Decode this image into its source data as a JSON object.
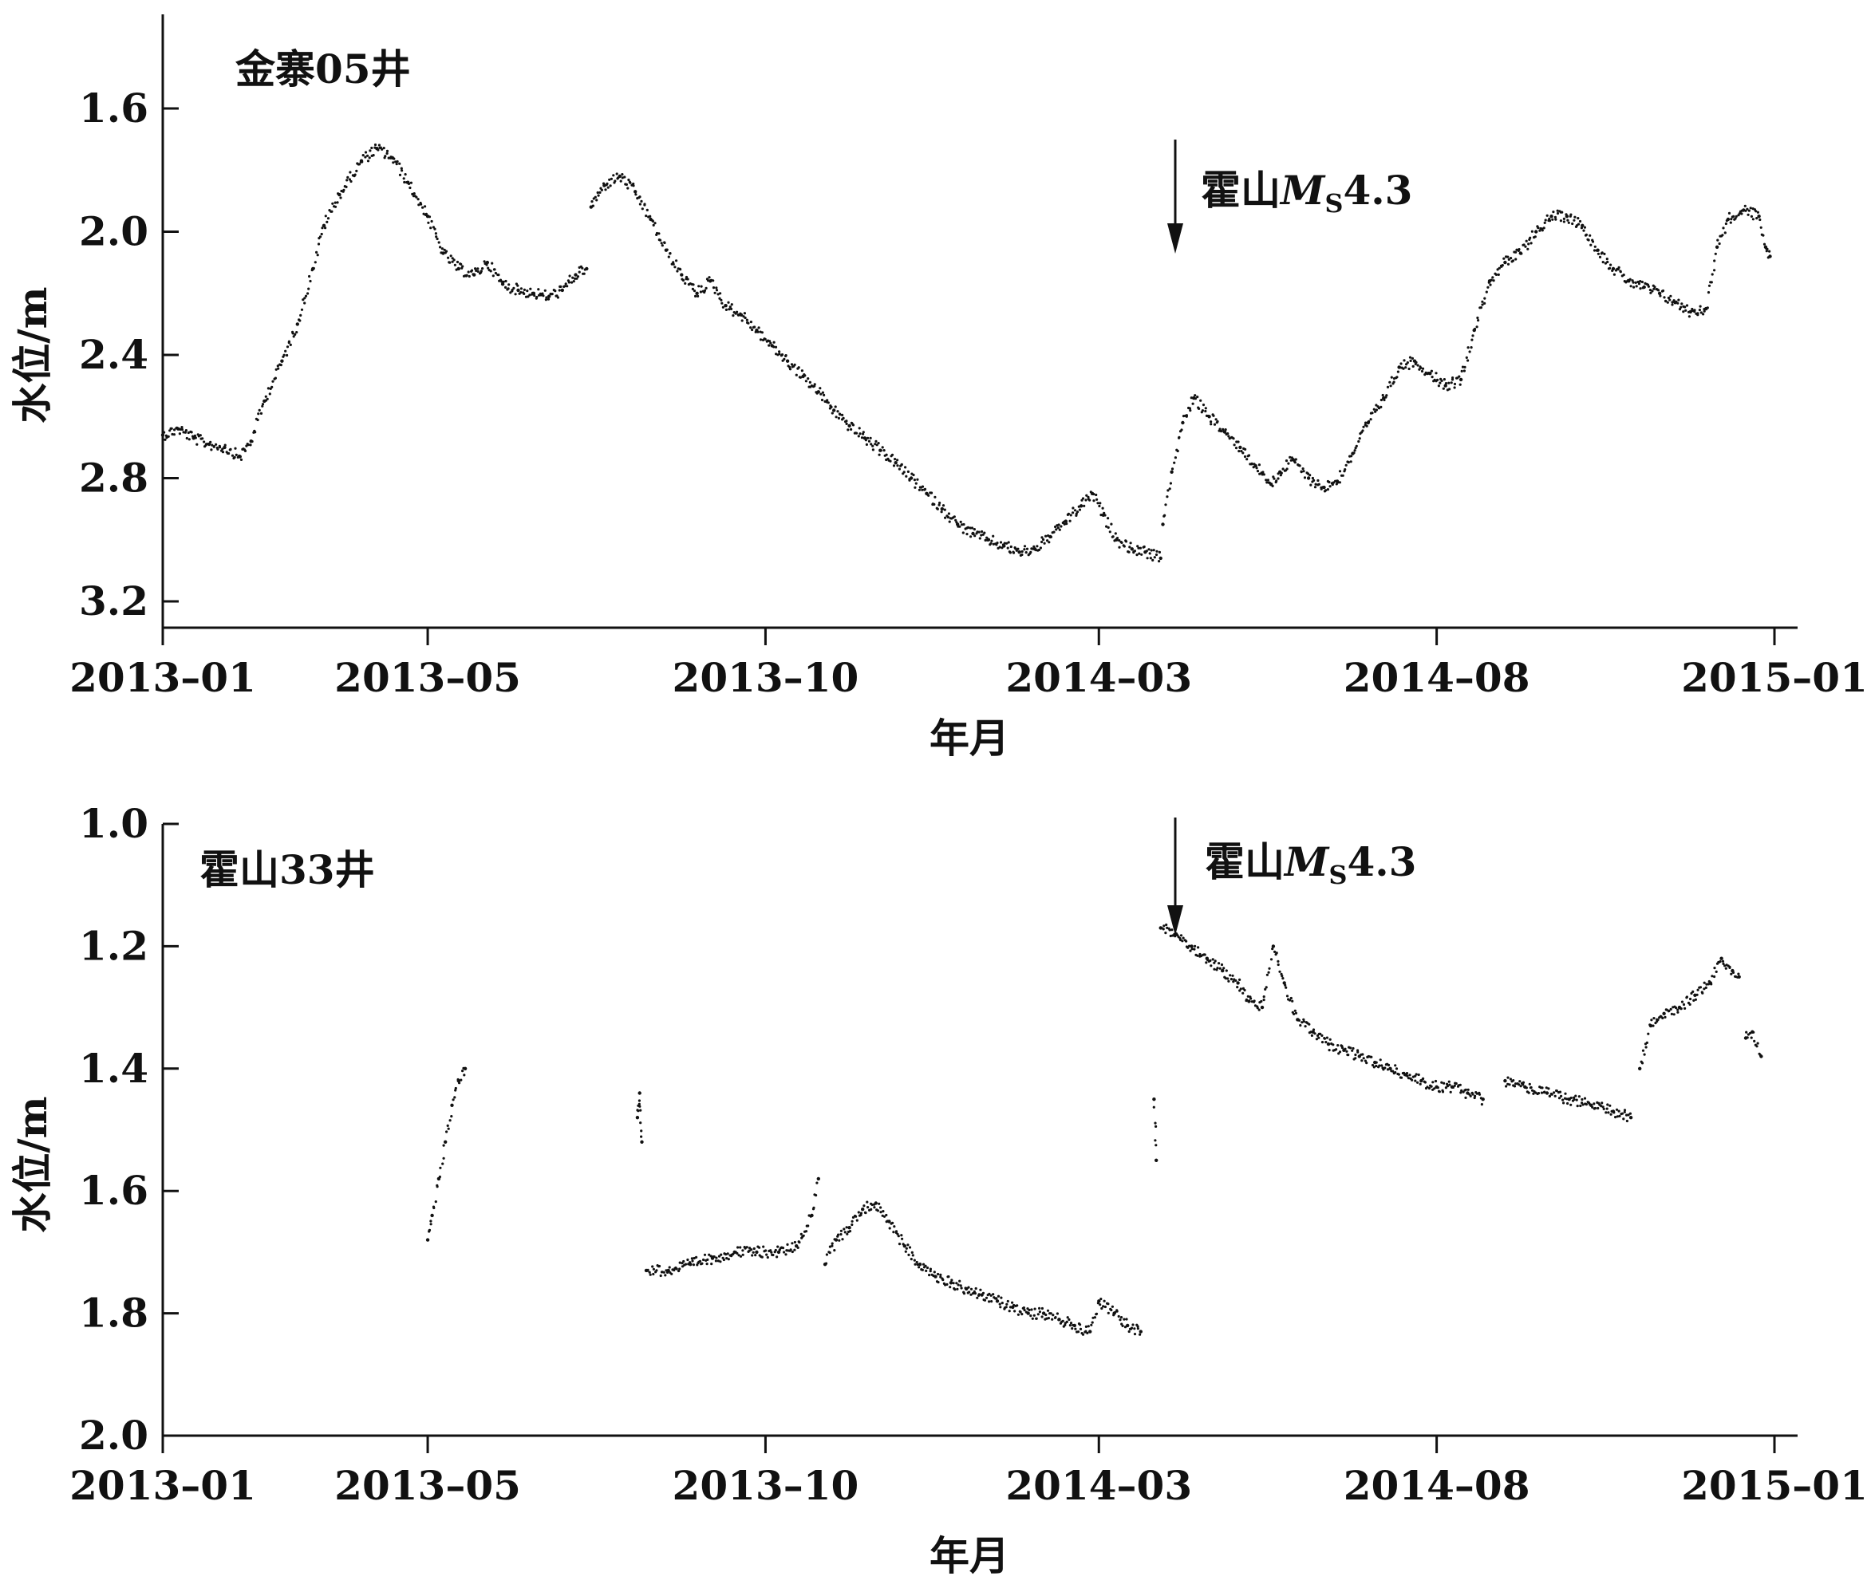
{
  "chart_data": [
    {
      "type": "scatter",
      "panel_label": "金寨05井",
      "xlabel": "年月",
      "ylabel": "水位/m",
      "x_ticks": [
        "2013-01",
        "2013-05",
        "2013-10",
        "2014-03",
        "2014-08",
        "2015-01"
      ],
      "x_range": [
        "2013-01-01",
        "2015-01-01"
      ],
      "y_ticks": [
        1.6,
        2.0,
        2.4,
        2.8,
        3.2
      ],
      "ylim": [
        3.3,
        1.35
      ],
      "y_inverted": true,
      "annotation": {
        "text_main": "霍山",
        "text_m": "M",
        "text_sub": "S",
        "text_mag": "4.3",
        "date": "2014-03-22",
        "arrow": "down"
      },
      "series": [
        {
          "segments": [
            [
              [
                "2013-01-01",
                2.66
              ],
              [
                "2013-01-08",
                2.64
              ],
              [
                "2013-01-15",
                2.67
              ],
              [
                "2013-01-22",
                2.69
              ],
              [
                "2013-01-29",
                2.7
              ],
              [
                "2013-02-05",
                2.73
              ],
              [
                "2013-02-10",
                2.68
              ],
              [
                "2013-02-16",
                2.55
              ],
              [
                "2013-02-24",
                2.42
              ],
              [
                "2013-03-03",
                2.3
              ],
              [
                "2013-03-10",
                2.12
              ],
              [
                "2013-03-15",
                1.98
              ],
              [
                "2013-03-22",
                1.88
              ],
              [
                "2013-04-01",
                1.77
              ],
              [
                "2013-04-08",
                1.73
              ],
              [
                "2013-04-15",
                1.76
              ],
              [
                "2013-04-22",
                1.84
              ],
              [
                "2013-05-01",
                1.95
              ],
              [
                "2013-05-08",
                2.07
              ],
              [
                "2013-05-15",
                2.12
              ],
              [
                "2013-05-22",
                2.14
              ],
              [
                "2013-05-28",
                2.1
              ],
              [
                "2013-06-04",
                2.17
              ],
              [
                "2013-06-11",
                2.19
              ],
              [
                "2013-06-18",
                2.2
              ],
              [
                "2013-06-25",
                2.21
              ],
              [
                "2013-07-01",
                2.19
              ],
              [
                "2013-07-07",
                2.14
              ],
              [
                "2013-07-12",
                2.12
              ]
            ],
            [
              [
                "2013-07-14",
                1.92
              ],
              [
                "2013-07-20",
                1.85
              ],
              [
                "2013-07-27",
                1.82
              ],
              [
                "2013-08-03",
                1.87
              ],
              [
                "2013-08-10",
                1.96
              ],
              [
                "2013-08-17",
                2.06
              ],
              [
                "2013-08-24",
                2.14
              ],
              [
                "2013-08-31",
                2.2
              ],
              [
                "2013-09-06",
                2.16
              ],
              [
                "2013-09-13",
                2.24
              ],
              [
                "2013-09-20",
                2.27
              ],
              [
                "2013-09-27",
                2.32
              ],
              [
                "2013-10-04",
                2.37
              ],
              [
                "2013-10-11",
                2.42
              ],
              [
                "2013-10-18",
                2.47
              ],
              [
                "2013-10-25",
                2.52
              ],
              [
                "2013-11-01",
                2.58
              ],
              [
                "2013-11-08",
                2.63
              ],
              [
                "2013-11-15",
                2.67
              ],
              [
                "2013-11-22",
                2.71
              ],
              [
                "2013-11-29",
                2.75
              ],
              [
                "2013-12-06",
                2.8
              ],
              [
                "2013-12-13",
                2.85
              ],
              [
                "2013-12-20",
                2.9
              ],
              [
                "2013-12-27",
                2.95
              ],
              [
                "2014-01-03",
                2.98
              ],
              [
                "2014-01-10",
                3.0
              ],
              [
                "2014-01-17",
                3.02
              ],
              [
                "2014-01-24",
                3.04
              ],
              [
                "2014-01-31",
                3.03
              ],
              [
                "2014-02-07",
                2.99
              ],
              [
                "2014-02-14",
                2.94
              ],
              [
                "2014-02-21",
                2.89
              ],
              [
                "2014-02-26",
                2.85
              ],
              [
                "2014-03-03",
                2.92
              ],
              [
                "2014-03-09",
                3.0
              ],
              [
                "2014-03-16",
                3.03
              ],
              [
                "2014-03-22",
                3.04
              ],
              [
                "2014-03-29",
                3.06
              ]
            ],
            [
              [
                "2014-03-30",
                2.95
              ],
              [
                "2014-04-03",
                2.78
              ],
              [
                "2014-04-08",
                2.62
              ],
              [
                "2014-04-13",
                2.54
              ],
              [
                "2014-04-20",
                2.6
              ],
              [
                "2014-04-27",
                2.65
              ],
              [
                "2014-05-04",
                2.7
              ],
              [
                "2014-05-11",
                2.76
              ],
              [
                "2014-05-18",
                2.82
              ],
              [
                "2014-05-22",
                2.78
              ],
              [
                "2014-05-28",
                2.74
              ],
              [
                "2014-06-04",
                2.8
              ],
              [
                "2014-06-11",
                2.83
              ],
              [
                "2014-06-17",
                2.81
              ],
              [
                "2014-06-24",
                2.72
              ],
              [
                "2014-07-01",
                2.62
              ],
              [
                "2014-07-08",
                2.54
              ],
              [
                "2014-07-15",
                2.44
              ],
              [
                "2014-07-22",
                2.42
              ],
              [
                "2014-07-29",
                2.46
              ],
              [
                "2014-08-05",
                2.5
              ],
              [
                "2014-08-12",
                2.48
              ],
              [
                "2014-08-18",
                2.32
              ],
              [
                "2014-08-25",
                2.16
              ],
              [
                "2014-09-01",
                2.1
              ],
              [
                "2014-09-08",
                2.07
              ],
              [
                "2014-09-15",
                2.0
              ],
              [
                "2014-09-22",
                1.95
              ],
              [
                "2014-09-29",
                1.95
              ],
              [
                "2014-10-06",
                1.98
              ],
              [
                "2014-10-13",
                2.06
              ],
              [
                "2014-10-20",
                2.12
              ],
              [
                "2014-10-27",
                2.16
              ],
              [
                "2014-11-03",
                2.18
              ],
              [
                "2014-11-10",
                2.2
              ],
              [
                "2014-11-17",
                2.23
              ],
              [
                "2014-11-24",
                2.26
              ],
              [
                "2014-12-01",
                2.25
              ],
              [
                "2014-12-06",
                2.05
              ],
              [
                "2014-12-11",
                1.96
              ],
              [
                "2014-12-18",
                1.93
              ],
              [
                "2014-12-25",
                1.95
              ],
              [
                "2014-12-28",
                2.05
              ],
              [
                "2014-12-30",
                2.08
              ]
            ]
          ]
        }
      ]
    },
    {
      "type": "scatter",
      "panel_label": "霍山33井",
      "xlabel": "年月",
      "ylabel": "水位/m",
      "x_ticks": [
        "2013-01",
        "2013-05",
        "2013-10",
        "2014-03",
        "2014-08",
        "2015-01"
      ],
      "x_range": [
        "2013-01-01",
        "2015-01-01"
      ],
      "y_ticks": [
        1.0,
        1.2,
        1.4,
        1.6,
        1.8,
        2.0
      ],
      "ylim": [
        2.0,
        1.0
      ],
      "y_inverted": true,
      "annotation": {
        "text_main": "霍山",
        "text_m": "M",
        "text_sub": "S",
        "text_mag": "4.3",
        "date": "2014-03-22",
        "arrow": "down"
      },
      "series": [
        {
          "segments": [
            [
              [
                "2013-05-01",
                1.68
              ],
              [
                "2013-05-03",
                1.64
              ],
              [
                "2013-05-06",
                1.58
              ],
              [
                "2013-05-09",
                1.52
              ],
              [
                "2013-05-12",
                1.46
              ],
              [
                "2013-05-15",
                1.42
              ],
              [
                "2013-05-18",
                1.4
              ]
            ],
            [
              [
                "2013-08-04",
                1.48
              ],
              [
                "2013-08-05",
                1.44
              ],
              [
                "2013-08-06",
                1.52
              ]
            ],
            [
              [
                "2013-08-08",
                1.73
              ],
              [
                "2013-08-18",
                1.73
              ],
              [
                "2013-08-28",
                1.72
              ],
              [
                "2013-09-07",
                1.71
              ],
              [
                "2013-09-17",
                1.7
              ],
              [
                "2013-09-27",
                1.7
              ],
              [
                "2013-10-07",
                1.7
              ],
              [
                "2013-10-15",
                1.69
              ],
              [
                "2013-10-22",
                1.64
              ],
              [
                "2013-10-25",
                1.58
              ]
            ],
            [
              [
                "2013-10-28",
                1.72
              ],
              [
                "2013-11-02",
                1.68
              ],
              [
                "2013-11-08",
                1.66
              ],
              [
                "2013-11-14",
                1.63
              ],
              [
                "2013-11-20",
                1.62
              ],
              [
                "2013-11-26",
                1.65
              ],
              [
                "2013-12-03",
                1.69
              ],
              [
                "2013-12-10",
                1.72
              ],
              [
                "2013-12-17",
                1.74
              ],
              [
                "2013-12-24",
                1.75
              ],
              [
                "2013-12-31",
                1.76
              ],
              [
                "2014-01-07",
                1.77
              ],
              [
                "2014-01-14",
                1.78
              ],
              [
                "2014-01-21",
                1.79
              ],
              [
                "2014-01-28",
                1.8
              ],
              [
                "2014-02-04",
                1.8
              ],
              [
                "2014-02-11",
                1.81
              ],
              [
                "2014-02-18",
                1.82
              ],
              [
                "2014-02-25",
                1.83
              ],
              [
                "2014-03-01",
                1.78
              ],
              [
                "2014-03-08",
                1.8
              ],
              [
                "2014-03-14",
                1.82
              ],
              [
                "2014-03-20",
                1.83
              ]
            ],
            [
              [
                "2014-03-26",
                1.45
              ],
              [
                "2014-03-27",
                1.55
              ]
            ],
            [
              [
                "2014-03-29",
                1.17
              ],
              [
                "2014-04-05",
                1.18
              ],
              [
                "2014-04-12",
                1.2
              ],
              [
                "2014-04-19",
                1.22
              ],
              [
                "2014-04-26",
                1.24
              ],
              [
                "2014-05-03",
                1.26
              ],
              [
                "2014-05-08",
                1.29
              ],
              [
                "2014-05-14",
                1.3
              ],
              [
                "2014-05-19",
                1.2
              ],
              [
                "2014-05-24",
                1.26
              ],
              [
                "2014-05-30",
                1.32
              ],
              [
                "2014-06-06",
                1.34
              ],
              [
                "2014-06-13",
                1.36
              ],
              [
                "2014-06-20",
                1.37
              ],
              [
                "2014-06-27",
                1.38
              ],
              [
                "2014-07-04",
                1.39
              ],
              [
                "2014-07-11",
                1.4
              ],
              [
                "2014-07-18",
                1.41
              ],
              [
                "2014-07-25",
                1.42
              ],
              [
                "2014-08-01",
                1.43
              ],
              [
                "2014-08-08",
                1.43
              ],
              [
                "2014-08-15",
                1.44
              ],
              [
                "2014-08-22",
                1.45
              ]
            ],
            [
              [
                "2014-09-01",
                1.42
              ],
              [
                "2014-09-10",
                1.43
              ],
              [
                "2014-09-20",
                1.44
              ],
              [
                "2014-09-30",
                1.45
              ],
              [
                "2014-10-10",
                1.46
              ],
              [
                "2014-10-20",
                1.47
              ],
              [
                "2014-10-28",
                1.48
              ]
            ],
            [
              [
                "2014-11-01",
                1.4
              ],
              [
                "2014-11-06",
                1.33
              ],
              [
                "2014-11-12",
                1.31
              ],
              [
                "2014-11-19",
                1.3
              ],
              [
                "2014-11-26",
                1.28
              ],
              [
                "2014-12-03",
                1.26
              ],
              [
                "2014-12-08",
                1.22
              ],
              [
                "2014-12-13",
                1.24
              ],
              [
                "2014-12-16",
                1.25
              ]
            ],
            [
              [
                "2014-12-19",
                1.35
              ],
              [
                "2014-12-22",
                1.34
              ],
              [
                "2014-12-26",
                1.38
              ]
            ]
          ]
        }
      ]
    }
  ]
}
